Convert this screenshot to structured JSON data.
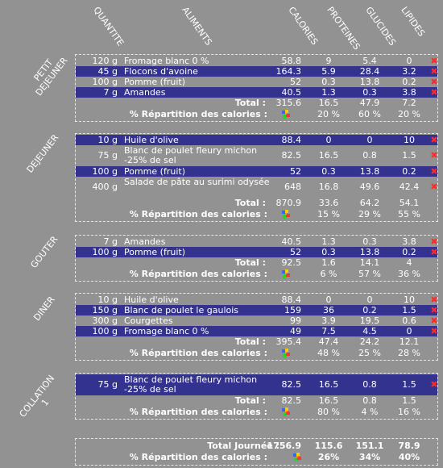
{
  "headers": {
    "quantite": "QUANTITE",
    "aliments": "ALIMENTS",
    "calories": "CALORIES",
    "proteines": "PROTEINES",
    "glucides": "GLUCIDES",
    "lipides": "LIPIDES"
  },
  "colors": {
    "background": "#929292",
    "highlight_row": "#33338f",
    "delete_icon": "#ff2a2a"
  },
  "labels": {
    "total": "Total :",
    "repartition": "% Répartition des calories :",
    "grand_total": "Total Journée :"
  },
  "delete_icon_glyph": "✖",
  "meals": [
    {
      "name": "PETIT\nDEJEUNER",
      "rows": [
        {
          "qty": "120 g",
          "food": "Fromage blanc 0 %",
          "cal": "58.8",
          "pro": "9",
          "glu": "5.4",
          "lip": "0",
          "hl": false
        },
        {
          "qty": "45 g",
          "food": "Flocons d'avoine",
          "cal": "164.3",
          "pro": "5.9",
          "glu": "28.4",
          "lip": "3.2",
          "hl": true
        },
        {
          "qty": "100 g",
          "food": "Pomme (fruit)",
          "cal": "52",
          "pro": "0.3",
          "glu": "13.8",
          "lip": "0.2",
          "hl": false
        },
        {
          "qty": "7 g",
          "food": "Amandes",
          "cal": "40.5",
          "pro": "1.3",
          "glu": "0.3",
          "lip": "3.8",
          "hl": true
        }
      ],
      "total": {
        "cal": "315.6",
        "pro": "16.5",
        "glu": "47.9",
        "lip": "7.2"
      },
      "repart": {
        "pro": "20 %",
        "glu": "60 %",
        "lip": "20 %"
      }
    },
    {
      "name": "DEJEUNER",
      "rows": [
        {
          "qty": "10 g",
          "food": "Huile d'olive",
          "cal": "88.4",
          "pro": "0",
          "glu": "0",
          "lip": "10",
          "hl": true
        },
        {
          "qty": "75 g",
          "food": "Blanc de poulet fleury michon -25% de sel",
          "cal": "82.5",
          "pro": "16.5",
          "glu": "0.8",
          "lip": "1.5",
          "hl": false
        },
        {
          "qty": "100 g",
          "food": "Pomme (fruit)",
          "cal": "52",
          "pro": "0.3",
          "glu": "13.8",
          "lip": "0.2",
          "hl": true
        },
        {
          "qty": "400 g",
          "food": "Salade de pâte au surimi odysée",
          "cal": "648",
          "pro": "16.8",
          "glu": "49.6",
          "lip": "42.4",
          "hl": false
        }
      ],
      "total": {
        "cal": "870.9",
        "pro": "33.6",
        "glu": "64.2",
        "lip": "54.1"
      },
      "repart": {
        "pro": "15 %",
        "glu": "29 %",
        "lip": "55 %"
      }
    },
    {
      "name": "GOUTER",
      "rows": [
        {
          "qty": "7 g",
          "food": "Amandes",
          "cal": "40.5",
          "pro": "1.3",
          "glu": "0.3",
          "lip": "3.8",
          "hl": false
        },
        {
          "qty": "100 g",
          "food": "Pomme (fruit)",
          "cal": "52",
          "pro": "0.3",
          "glu": "13.8",
          "lip": "0.2",
          "hl": true
        }
      ],
      "total": {
        "cal": "92.5",
        "pro": "1.6",
        "glu": "14.1",
        "lip": "4"
      },
      "repart": {
        "pro": "6 %",
        "glu": "57 %",
        "lip": "36 %"
      }
    },
    {
      "name": "DINER",
      "rows": [
        {
          "qty": "10 g",
          "food": "Huile d'olive",
          "cal": "88.4",
          "pro": "0",
          "glu": "0",
          "lip": "10",
          "hl": false
        },
        {
          "qty": "150 g",
          "food": "Blanc de poulet le gaulois",
          "cal": "159",
          "pro": "36",
          "glu": "0.2",
          "lip": "1.5",
          "hl": true
        },
        {
          "qty": "300 g",
          "food": "Courgettes",
          "cal": "99",
          "pro": "3.9",
          "glu": "19.5",
          "lip": "0.6",
          "hl": false
        },
        {
          "qty": "100 g",
          "food": "Fromage blanc 0 %",
          "cal": "49",
          "pro": "7.5",
          "glu": "4.5",
          "lip": "0",
          "hl": true
        }
      ],
      "total": {
        "cal": "395.4",
        "pro": "47.4",
        "glu": "24.2",
        "lip": "12.1"
      },
      "repart": {
        "pro": "48 %",
        "glu": "25 %",
        "lip": "28 %"
      }
    },
    {
      "name": "COLLATION\n1",
      "rows": [
        {
          "qty": "75 g",
          "food": "Blanc de poulet fleury michon -25% de sel",
          "cal": "82.5",
          "pro": "16.5",
          "glu": "0.8",
          "lip": "1.5",
          "hl": true
        }
      ],
      "total": {
        "cal": "82.5",
        "pro": "16.5",
        "glu": "0.8",
        "lip": "1.5"
      },
      "repart": {
        "pro": "80 %",
        "glu": "4 %",
        "lip": "16 %"
      }
    }
  ],
  "grand": {
    "total": {
      "cal": "1756.9",
      "pro": "115.6",
      "glu": "151.1",
      "lip": "78.9"
    },
    "repart": {
      "pro": "26%",
      "glu": "34%",
      "lip": "40%"
    }
  }
}
